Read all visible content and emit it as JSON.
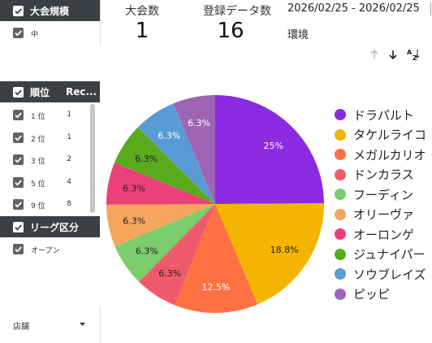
{
  "filters": {
    "tournament_size": {
      "title": "大会規模",
      "items": [
        {
          "label": "中",
          "checked": true
        }
      ]
    },
    "rank": {
      "title": "順位",
      "column": "Rec...",
      "items": [
        {
          "label": "1 位",
          "count": "1",
          "checked": true
        },
        {
          "label": "2 位",
          "count": "1",
          "checked": true
        },
        {
          "label": "3 位",
          "count": "2",
          "checked": true
        },
        {
          "label": "5 位",
          "count": "4",
          "checked": true
        },
        {
          "label": "9 位",
          "count": "8",
          "checked": true
        }
      ]
    },
    "league": {
      "title": "リーグ区分",
      "items": [
        {
          "label": "オープン",
          "checked": true
        }
      ]
    },
    "store": {
      "label": "店舗"
    }
  },
  "scorecards": {
    "tournaments": {
      "label": "大会数",
      "value": "1"
    },
    "entries": {
      "label": "登録データ数",
      "value": "16"
    }
  },
  "date_range": "2026/02/25 - 2026/02/25",
  "environment_label": "環境",
  "toolbar": {
    "sort_up": "sort-ascending",
    "sort_down": "sort-descending",
    "az": "sort-az"
  },
  "chart_data": {
    "type": "pie",
    "title": "",
    "slices": [
      {
        "name": "ドラパルト",
        "value": 25,
        "label": "25%",
        "color": "#8a2be2"
      },
      {
        "name": "タケルライコ",
        "value": 18.8,
        "label": "18.8%",
        "color": "#f4b400"
      },
      {
        "name": "メガルカリオ",
        "value": 12.5,
        "label": "12.5%",
        "color": "#ff7043"
      },
      {
        "name": "ドンカラス",
        "value": 6.3,
        "label": "6.3%",
        "color": "#ef5a6a"
      },
      {
        "name": "フーディン",
        "value": 6.3,
        "label": "6.3%",
        "color": "#7ccd6b"
      },
      {
        "name": "オリーヴァ",
        "value": 6.3,
        "label": "6.3%",
        "color": "#f6a55e"
      },
      {
        "name": "オーロンゲ",
        "value": 6.3,
        "label": "6.3%",
        "color": "#ec407a"
      },
      {
        "name": "ジュナイパー",
        "value": 6.3,
        "label": "6.3%",
        "color": "#5aaa1e"
      },
      {
        "name": "ソウブレイズ",
        "value": 6.3,
        "label": "6.3%",
        "color": "#5b9bd5"
      },
      {
        "name": "ピッピ",
        "value": 6.3,
        "label": "6.3%",
        "color": "#a064b4"
      }
    ]
  }
}
